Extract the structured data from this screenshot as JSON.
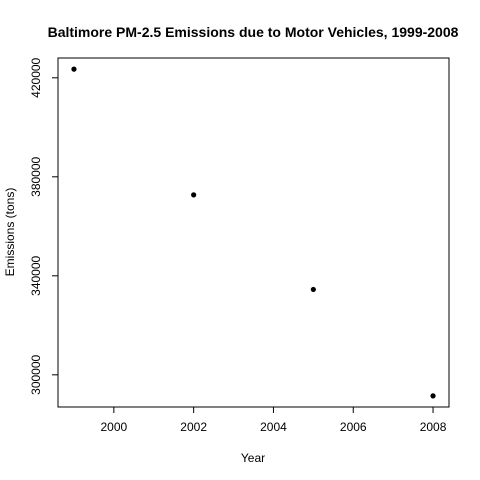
{
  "chart_data": {
    "type": "scatter",
    "title": "Baltimore PM-2.5 Emissions due to Motor Vehicles, 1999-2008",
    "xlabel": "Year",
    "ylabel": "Emissions (tons)",
    "x": [
      1999,
      2002,
      2005,
      2008
    ],
    "y": [
      423500,
      372700,
      334500,
      291500
    ],
    "xlim": [
      1998.6,
      2008.4
    ],
    "ylim": [
      287000,
      428000
    ],
    "x_ticks": [
      2000,
      2002,
      2004,
      2006,
      2008
    ],
    "x_tick_labels": [
      "2000",
      "2002",
      "2004",
      "2006",
      "2008"
    ],
    "y_ticks": [
      300000,
      340000,
      380000,
      420000
    ],
    "y_tick_labels": [
      "300000",
      "340000",
      "380000",
      "420000"
    ],
    "grid": false,
    "legend": "none",
    "point_color": "#000000"
  }
}
